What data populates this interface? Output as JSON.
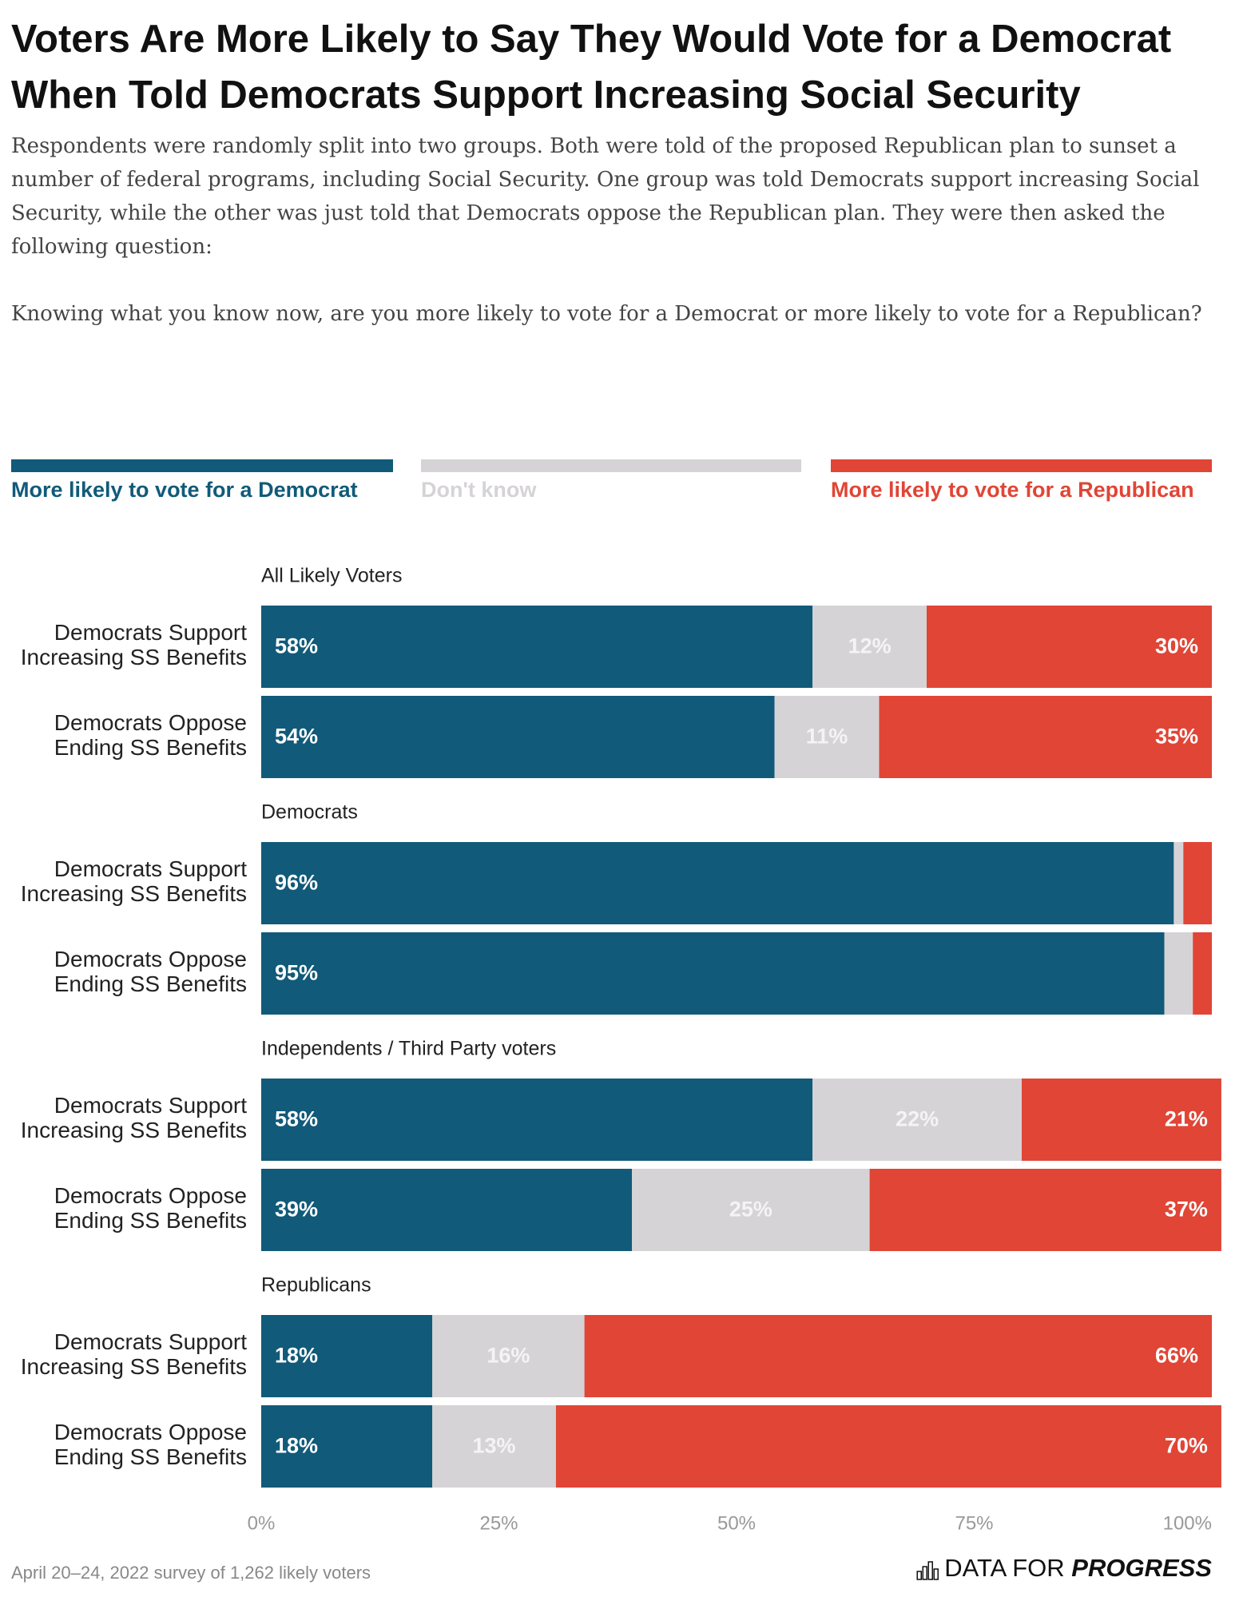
{
  "chart_data": {
    "type": "bar",
    "orientation": "horizontal",
    "stacked": true,
    "title": "Voters Are More Likely to Say They Would Vote for a Democrat When Told Democrats Support Increasing Social Security",
    "subtitle": "Respondents were randomly split into two groups. Both were told of the proposed Republican plan to sunset a number of federal programs, including Social Security. One group was told Democrats support increasing Social Security, while the other was just told that Democrats oppose the Republican plan. They were then asked the following question:",
    "question": "Knowing what you know now, are you more likely to vote for a Democrat or more likely to vote for a Republican?",
    "groups": [
      "All Likely Voters",
      "Democrats",
      "Independents / Third Party voters",
      "Republicans"
    ],
    "categories": [
      [
        "Democrats Support Increasing SS Benefits",
        "Democrats Oppose Ending SS Benefits"
      ],
      [
        "Democrats Support Increasing SS Benefits",
        "Democrats Oppose Ending SS Benefits"
      ],
      [
        "Democrats Support Increasing SS Benefits",
        "Democrats Oppose Ending SS Benefits"
      ],
      [
        "Democrats Support Increasing SS Benefits",
        "Democrats Oppose Ending SS Benefits"
      ]
    ],
    "series": [
      {
        "name": "More likely to vote for a Democrat",
        "color": "#115a79",
        "values": [
          [
            58,
            54
          ],
          [
            96,
            95
          ],
          [
            58,
            39
          ],
          [
            18,
            18
          ]
        ],
        "value_labels": [
          [
            "58%",
            "54%"
          ],
          [
            "96%",
            "95%"
          ],
          [
            "58%",
            "39%"
          ],
          [
            "18%",
            "18%"
          ]
        ]
      },
      {
        "name": "Don't know",
        "color": "#d6d3d7",
        "values": [
          [
            12,
            11
          ],
          [
            1,
            3
          ],
          [
            22,
            25
          ],
          [
            16,
            13
          ]
        ],
        "value_labels": [
          [
            "12%",
            "11%"
          ],
          [
            null,
            null
          ],
          [
            "22%",
            "25%"
          ],
          [
            "16%",
            "13%"
          ]
        ]
      },
      {
        "name": "More likely to vote for a Republican",
        "color": "#e04536",
        "values": [
          [
            30,
            35
          ],
          [
            3,
            2
          ],
          [
            21,
            37
          ],
          [
            66,
            70
          ]
        ],
        "value_labels": [
          [
            "30%",
            "35%"
          ],
          [
            null,
            null
          ],
          [
            "21%",
            "37%"
          ],
          [
            "66%",
            "70%"
          ]
        ]
      }
    ],
    "xlim": [
      0,
      100
    ],
    "xticks": [
      {
        "value": 0,
        "label": "0%"
      },
      {
        "value": 25,
        "label": "25%"
      },
      {
        "value": 50,
        "label": "50%"
      },
      {
        "value": 75,
        "label": "75%"
      },
      {
        "value": 100,
        "label": "100%"
      }
    ],
    "note": "April 20–24, 2022 survey of 1,262 likely voters",
    "logo": [
      "DATA FOR",
      "PROGRESS"
    ]
  }
}
